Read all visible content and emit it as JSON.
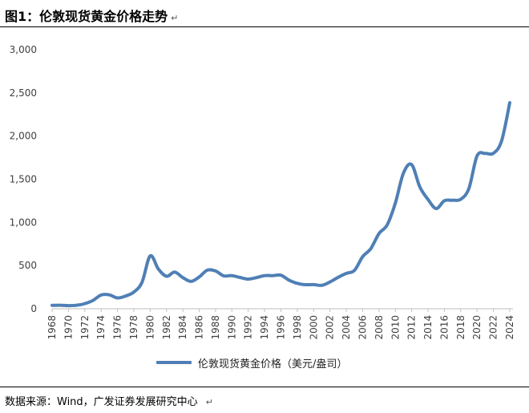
{
  "header": {
    "title": "图1：伦敦现货黄金价格走势",
    "para_mark": "↵"
  },
  "footer": {
    "source": "数据来源：Wind，广发证券发展研究中心",
    "para_mark": "↵"
  },
  "colors": {
    "series": "#4f7fb5",
    "axis": "#bfbfbf",
    "tick_text": "#404040"
  },
  "chart_data": {
    "type": "line",
    "title": "",
    "xlabel": "",
    "ylabel": "",
    "ylim": [
      0,
      3000
    ],
    "xlim": [
      1968,
      2024
    ],
    "y_ticks": [
      "0",
      "500",
      "1,000",
      "1,500",
      "2,000",
      "2,500",
      "3,000"
    ],
    "x_ticks": [
      "1968",
      "1970",
      "1972",
      "1974",
      "1976",
      "1978",
      "1980",
      "1982",
      "1984",
      "1986",
      "1988",
      "1990",
      "1992",
      "1994",
      "1996",
      "1998",
      "2000",
      "2002",
      "2004",
      "2006",
      "2008",
      "2010",
      "2012",
      "2014",
      "2016",
      "2018",
      "2020",
      "2022",
      "2024"
    ],
    "grid": false,
    "legend_position": "bottom",
    "series": [
      {
        "name": "伦敦现货黄金价格（美元/盎司）",
        "x": [
          1968,
          1969,
          1970,
          1971,
          1972,
          1973,
          1974,
          1975,
          1976,
          1977,
          1978,
          1979,
          1980,
          1981,
          1982,
          1983,
          1984,
          1985,
          1986,
          1987,
          1988,
          1989,
          1990,
          1991,
          1992,
          1993,
          1994,
          1995,
          1996,
          1997,
          1998,
          1999,
          2000,
          2001,
          2002,
          2003,
          2004,
          2005,
          2006,
          2007,
          2008,
          2009,
          2010,
          2011,
          2012,
          2013,
          2014,
          2015,
          2016,
          2017,
          2018,
          2019,
          2020,
          2021,
          2022,
          2023,
          2024
        ],
        "y": [
          39,
          41,
          36,
          41,
          59,
          97,
          159,
          161,
          125,
          148,
          193,
          307,
          612,
          460,
          376,
          424,
          361,
          317,
          368,
          447,
          437,
          381,
          384,
          362,
          344,
          360,
          384,
          384,
          388,
          331,
          294,
          279,
          280,
          271,
          310,
          364,
          410,
          445,
          604,
          697,
          872,
          972,
          1225,
          1572,
          1669,
          1411,
          1266,
          1160,
          1251,
          1257,
          1268,
          1392,
          1770,
          1799,
          1800,
          1943,
          2386
        ]
      }
    ]
  }
}
